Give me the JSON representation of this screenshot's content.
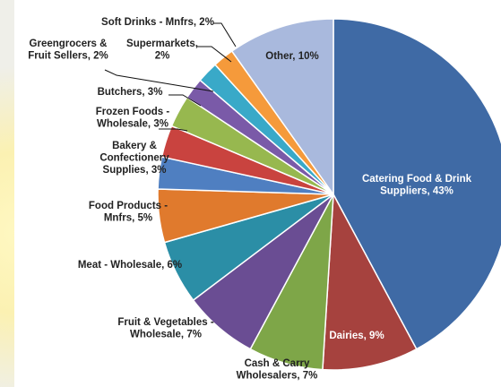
{
  "chart_data": {
    "type": "pie",
    "title": "",
    "legend": "none",
    "slices": [
      {
        "label": "Catering Food & Drink Suppliers",
        "value": 43,
        "color": "#3f6aa5"
      },
      {
        "label": "Dairies",
        "value": 9,
        "color": "#a6423e"
      },
      {
        "label": "Cash & Carry Wholesalers",
        "value": 7,
        "color": "#7ea648"
      },
      {
        "label": "Fruit & Vegetables - Wholesale",
        "value": 7,
        "color": "#6a4d93"
      },
      {
        "label": "Meat - Wholesale",
        "value": 6,
        "color": "#2b8ea6"
      },
      {
        "label": "Food Products - Mnfrs",
        "value": 5,
        "color": "#e07a2d"
      },
      {
        "label": "Bakery & Confectionery Supplies",
        "value": 3,
        "color": "#4f7fc1"
      },
      {
        "label": "Frozen Foods - Wholesale",
        "value": 3,
        "color": "#c9433f"
      },
      {
        "label": "Butchers",
        "value": 3,
        "color": "#97b84f"
      },
      {
        "label": "Greengrocers & Fruit Sellers",
        "value": 2,
        "color": "#7a5aa8"
      },
      {
        "label": "Supermarkets",
        "value": 2,
        "color": "#39a9c8"
      },
      {
        "label": "Soft Drinks - Mnfrs",
        "value": 2,
        "color": "#f59a3b"
      },
      {
        "label": "Other",
        "value": 10,
        "color": "#a9b9dd"
      }
    ],
    "data_labels": [
      {
        "lines": [
          "Catering Food & Drink",
          "Suppliers, 43%"
        ]
      },
      {
        "lines": [
          "Dairies, 9%"
        ]
      },
      {
        "lines": [
          "Cash & Carry",
          "Wholesalers, 7%"
        ]
      },
      {
        "lines": [
          "Fruit & Vegetables -",
          "Wholesale, 7%"
        ]
      },
      {
        "lines": [
          "Meat - Wholesale, 6%"
        ]
      },
      {
        "lines": [
          "Food Products -",
          "Mnfrs, 5%"
        ]
      },
      {
        "lines": [
          "Bakery &",
          "Confectionery",
          "Supplies, 3%"
        ]
      },
      {
        "lines": [
          "Frozen Foods -",
          "Wholesale, 3%"
        ]
      },
      {
        "lines": [
          "Butchers, 3%"
        ]
      },
      {
        "lines": [
          "Greengrocers &",
          "Fruit Sellers, 2%"
        ]
      },
      {
        "lines": [
          "Supermarkets,",
          "2%"
        ]
      },
      {
        "lines": [
          "Soft Drinks - Mnfrs, 2%"
        ]
      },
      {
        "lines": [
          "Other, 10%"
        ]
      }
    ]
  }
}
